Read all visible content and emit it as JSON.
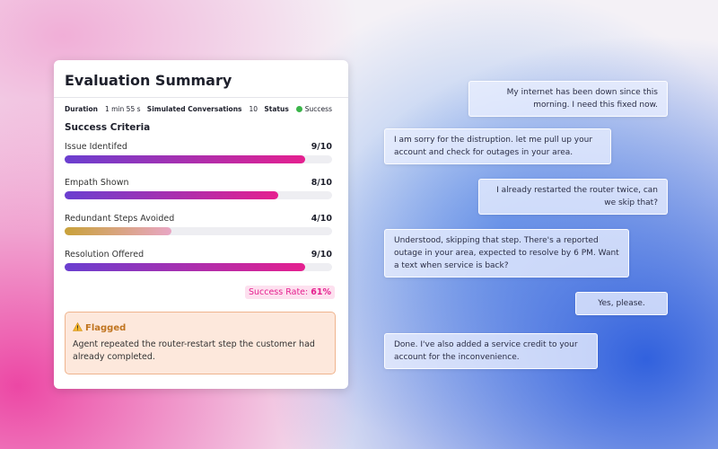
{
  "summary": {
    "title": "Evaluation Summary",
    "meta": [
      {
        "label": "Duration",
        "value": "1 min 55 s"
      },
      {
        "label": "Simulated Conversations",
        "value": "10"
      },
      {
        "label": "Status",
        "value": "Success"
      }
    ],
    "criteria_title": "Success Criteria",
    "criteria": [
      {
        "name": "Issue Identifed",
        "score": {
          "value": 9,
          "max": 10,
          "label": "9/10"
        }
      },
      {
        "name": "Empath Shown",
        "score": {
          "value": 8,
          "max": 10,
          "label": "8/10"
        }
      },
      {
        "name": "Redundant Steps Avoided",
        "score": {
          "value": 4,
          "max": 10,
          "label": "4/10"
        }
      },
      {
        "name": "Resolution Offered",
        "score": {
          "value": 9,
          "max": 10,
          "label": "9/10"
        }
      }
    ],
    "success_rate": {
      "label": "Success Rate:",
      "value": "61%"
    },
    "flag": {
      "title": "Flagged",
      "text": "Agent repeated the router-restart step the customer had already completed."
    }
  },
  "conversation": [
    {
      "side": "right",
      "text": "My internet has been down since this morning. I need this fixed now."
    },
    {
      "side": "left",
      "text": "I am sorry for the distruption. let me pull up your account and check for outages in your area."
    },
    {
      "side": "right",
      "text": "I already restarted the router twice, can we skip that?"
    },
    {
      "side": "left",
      "text": "Understood, skipping that step. There's a reported outage in your area, expected to resolve by 6 PM. Want a text when service is back?"
    },
    {
      "side": "right",
      "text": "Yes, please."
    },
    {
      "side": "left",
      "text": "Done. I've also added a service credit to your account for the inconvenience."
    }
  ]
}
